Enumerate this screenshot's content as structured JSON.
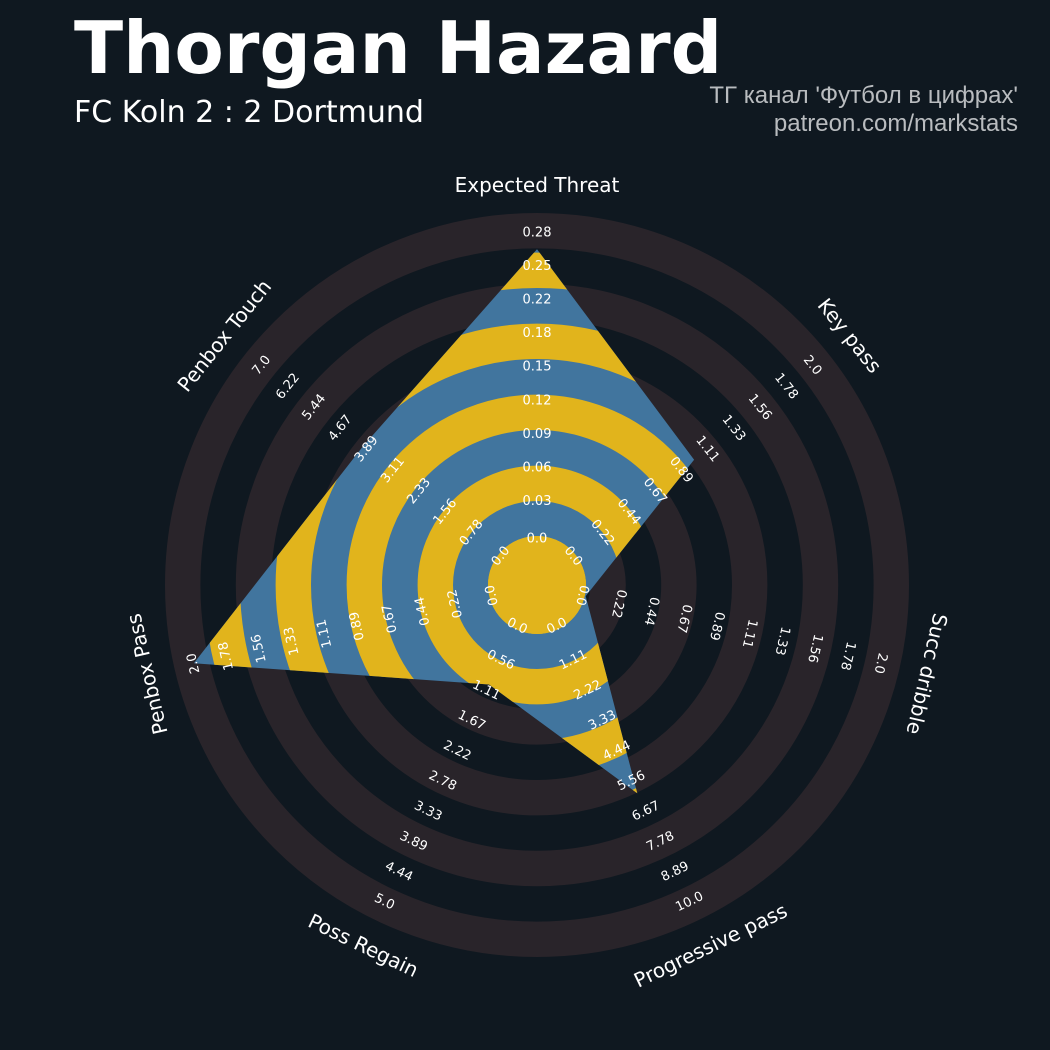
{
  "header": {
    "title": "Thorgan Hazard",
    "subtitle": "FC Koln 2 : 2 Dortmund",
    "credit_line1": "ТГ канал 'Футбол в цифрах'",
    "credit_line2": "patreon.com/markstats"
  },
  "colors": {
    "background": "#0f1820",
    "ring_dark": "#29242a",
    "ring_light": "#0f1820",
    "polygon_blue": "#41759e",
    "polygon_yellow": "#e1b41c",
    "label": "#ffffff"
  },
  "chart_data": {
    "type": "radar",
    "title": "Thorgan Hazard",
    "subtitle": "FC Koln 2 : 2 Dortmund",
    "grid": true,
    "params": [
      {
        "label": "Expected Threat",
        "value": 0.265,
        "min": 0.0,
        "max": 0.28,
        "ticks": [
          "0.0",
          "0.03",
          "0.06",
          "0.09",
          "0.12",
          "0.15",
          "0.18",
          "0.22",
          "0.25",
          "0.28"
        ]
      },
      {
        "label": "Key pass",
        "value": 1.0,
        "min": 0.0,
        "max": 2.0,
        "ticks": [
          "0.0",
          "0.22",
          "0.44",
          "0.67",
          "0.89",
          "1.11",
          "1.33",
          "1.56",
          "1.78",
          "2.0"
        ]
      },
      {
        "label": "Succ dribble",
        "value": 0.0,
        "min": 0.0,
        "max": 2.0,
        "ticks": [
          "0.0",
          "0.22",
          "0.44",
          "0.67",
          "0.89",
          "1.11",
          "1.33",
          "1.56",
          "1.78",
          "2.0"
        ]
      },
      {
        "label": "Progressive pass",
        "value": 6.0,
        "min": 0.0,
        "max": 10.0,
        "ticks": [
          "0.0",
          "1.11",
          "2.22",
          "3.33",
          "4.44",
          "5.56",
          "6.67",
          "7.78",
          "8.89",
          "10.0"
        ]
      },
      {
        "label": "Poss Regain",
        "value": 1.0,
        "min": 0.0,
        "max": 5.0,
        "ticks": [
          "0.0",
          "0.56",
          "1.11",
          "1.67",
          "2.22",
          "2.78",
          "3.33",
          "3.89",
          "4.44",
          "5.0"
        ]
      },
      {
        "label": "Penbox Pass",
        "value": 2.0,
        "min": 0.0,
        "max": 2.0,
        "ticks": [
          "0.0",
          "0.22",
          "0.44",
          "0.67",
          "0.89",
          "1.11",
          "1.33",
          "1.56",
          "1.78",
          "2.0"
        ]
      },
      {
        "label": "Penbox Touch",
        "value": 4.0,
        "min": 0.0,
        "max": 7.0,
        "ticks": [
          "0.0",
          "0.78",
          "1.56",
          "2.33",
          "3.11",
          "3.89",
          "4.67",
          "5.44",
          "6.22",
          "7.0"
        ]
      }
    ]
  }
}
